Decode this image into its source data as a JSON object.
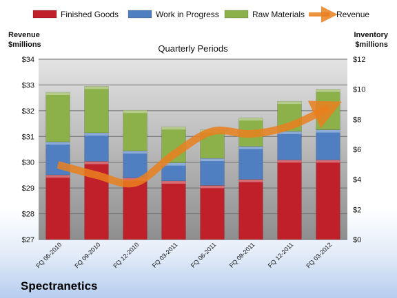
{
  "chart_data": {
    "type": "bar",
    "subtitle": "Quarterly Periods",
    "left_axis_title": [
      "Revenue",
      "$millions"
    ],
    "right_axis_title": [
      "Inventory",
      "$millions"
    ],
    "categories": [
      "FQ 06-2010",
      "FQ 09-2010",
      "FQ 12-2010",
      "FQ 03-2011",
      "FQ 06-2011",
      "FQ 09-2011",
      "FQ 12-2011",
      "FQ 03-2012"
    ],
    "left_ylim": [
      27,
      34
    ],
    "left_ticks": [
      "$27",
      "$28",
      "$29",
      "$30",
      "$31",
      "$32",
      "$33",
      "$34"
    ],
    "right_ylim": [
      0,
      12
    ],
    "right_ticks": [
      "$0",
      "$2",
      "$4",
      "$6",
      "$8",
      "$10",
      "$12"
    ],
    "series": [
      {
        "name": "Finished Goods",
        "kind": "stacked-bar",
        "axis": "right",
        "color": "#c0202a",
        "values": [
          4.3,
          5.2,
          4.1,
          3.9,
          3.6,
          4.0,
          5.3,
          5.3
        ]
      },
      {
        "name": "Work in Progress",
        "kind": "stacked-bar",
        "axis": "right",
        "color": "#4f7fc0",
        "values": [
          2.2,
          1.9,
          1.8,
          1.2,
          1.8,
          2.2,
          1.9,
          2.0
        ]
      },
      {
        "name": "Raw Materials",
        "kind": "stacked-bar",
        "axis": "right",
        "color": "#8cb04a",
        "values": [
          3.3,
          3.1,
          2.7,
          2.4,
          1.9,
          1.9,
          2.0,
          2.7
        ]
      },
      {
        "name": "Revenue",
        "kind": "line",
        "axis": "left",
        "color": "#e9801f",
        "values": [
          29.9,
          29.5,
          29.2,
          30.3,
          31.2,
          31.1,
          31.4,
          32.1
        ]
      }
    ],
    "grid": true,
    "legend_position": "top"
  },
  "company": "Spectranetics"
}
